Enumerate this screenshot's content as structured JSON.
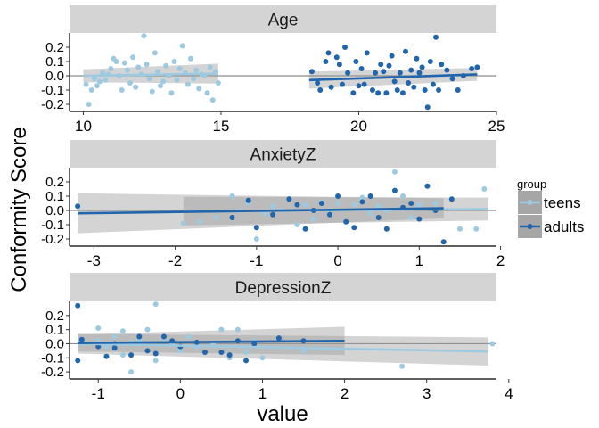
{
  "chart_data": {
    "type": "scatter",
    "ylabel": "Conformity Score",
    "xlabel": "value",
    "legend": {
      "title": "group",
      "placement": "right",
      "entries": [
        {
          "name": "teens",
          "color": "#9ecae1"
        },
        {
          "name": "adults",
          "color": "#2166ac"
        }
      ]
    },
    "ylim": [
      -0.25,
      0.3
    ],
    "yticks": [
      0.2,
      0.1,
      0.0,
      -0.1,
      -0.2
    ],
    "ytick_labels": [
      "0.2",
      "0.1",
      "0.0",
      "-0.1",
      "-0.2"
    ],
    "panels": [
      {
        "strip": "Age",
        "xlim": [
          9.5,
          25.0
        ],
        "xticks": [
          10,
          15,
          20,
          25
        ],
        "xtick_labels": [
          "10",
          "15",
          "20",
          "25"
        ],
        "series": [
          {
            "name": "teens",
            "color": "#9ecae1",
            "fit": {
              "x": [
                10.0,
                14.9
              ],
              "y": [
                0.0,
                0.015
              ],
              "ci_halfwidth": [
                0.045,
                0.07
              ]
            },
            "points": [
              [
                10.1,
                -0.06
              ],
              [
                10.2,
                -0.2
              ],
              [
                10.3,
                -0.1
              ],
              [
                10.4,
                -0.02
              ],
              [
                10.5,
                -0.07
              ],
              [
                10.6,
                -0.04
              ],
              [
                10.7,
                0.02
              ],
              [
                10.8,
                -0.03
              ],
              [
                10.9,
                0.01
              ],
              [
                11.0,
                0.05
              ],
              [
                11.1,
                0.12
              ],
              [
                11.2,
                0.1
              ],
              [
                11.3,
                0.0
              ],
              [
                11.4,
                -0.1
              ],
              [
                11.5,
                0.09
              ],
              [
                11.6,
                0.04
              ],
              [
                11.7,
                -0.05
              ],
              [
                11.8,
                0.13
              ],
              [
                11.9,
                -0.08
              ],
              [
                12.0,
                0.06
              ],
              [
                12.1,
                0.01
              ],
              [
                12.2,
                0.28
              ],
              [
                12.3,
                0.08
              ],
              [
                12.4,
                -0.02
              ],
              [
                12.5,
                -0.11
              ],
              [
                12.6,
                0.16
              ],
              [
                12.7,
                0.03
              ],
              [
                12.8,
                -0.07
              ],
              [
                12.9,
                -0.04
              ],
              [
                13.0,
                0.07
              ],
              [
                13.1,
                0.0
              ],
              [
                13.2,
                -0.12
              ],
              [
                13.3,
                0.1
              ],
              [
                13.4,
                -0.03
              ],
              [
                13.5,
                0.05
              ],
              [
                13.6,
                0.21
              ],
              [
                13.7,
                0.02
              ],
              [
                13.8,
                -0.06
              ],
              [
                13.9,
                0.12
              ],
              [
                14.0,
                -0.02
              ],
              [
                14.1,
                0.04
              ],
              [
                14.2,
                -0.09
              ],
              [
                14.3,
                0.01
              ],
              [
                14.4,
                0.0
              ],
              [
                14.5,
                -0.12
              ],
              [
                14.6,
                0.06
              ],
              [
                14.7,
                -0.17
              ],
              [
                14.8,
                0.03
              ],
              [
                14.9,
                -0.05
              ]
            ]
          },
          {
            "name": "adults",
            "color": "#2166ac",
            "fit": {
              "x": [
                18.2,
                24.3
              ],
              "y": [
                -0.03,
                0.01
              ],
              "ci_halfwidth": [
                0.06,
                0.045
              ]
            },
            "points": [
              [
                18.3,
                0.03
              ],
              [
                18.5,
                -0.05
              ],
              [
                18.6,
                -0.1
              ],
              [
                18.8,
                0.1
              ],
              [
                18.9,
                0.16
              ],
              [
                19.0,
                -0.08
              ],
              [
                19.2,
                0.13
              ],
              [
                19.3,
                0.08
              ],
              [
                19.4,
                -0.06
              ],
              [
                19.5,
                0.2
              ],
              [
                19.6,
                0.02
              ],
              [
                19.8,
                -0.12
              ],
              [
                19.9,
                0.1
              ],
              [
                20.0,
                -0.07
              ],
              [
                20.1,
                0.05
              ],
              [
                20.2,
                -0.06
              ],
              [
                20.3,
                0.16
              ],
              [
                20.5,
                -0.1
              ],
              [
                20.6,
                0.02
              ],
              [
                20.7,
                -0.12
              ],
              [
                20.8,
                0.08
              ],
              [
                20.9,
                0.03
              ],
              [
                21.0,
                -0.12
              ],
              [
                21.1,
                0.07
              ],
              [
                21.2,
                0.14
              ],
              [
                21.3,
                -0.04
              ],
              [
                21.4,
                -0.1
              ],
              [
                21.5,
                0.02
              ],
              [
                21.6,
                -0.12
              ],
              [
                21.7,
                0.17
              ],
              [
                21.8,
                -0.05
              ],
              [
                21.9,
                0.04
              ],
              [
                22.0,
                -0.08
              ],
              [
                22.1,
                0.12
              ],
              [
                22.2,
                0.02
              ],
              [
                22.3,
                0.06
              ],
              [
                22.4,
                -0.1
              ],
              [
                22.5,
                -0.22
              ],
              [
                22.6,
                0.1
              ],
              [
                22.7,
                -0.06
              ],
              [
                22.8,
                0.27
              ],
              [
                22.9,
                -0.1
              ],
              [
                23.0,
                0.08
              ],
              [
                23.2,
                0.04
              ],
              [
                23.4,
                -0.02
              ],
              [
                23.6,
                -0.1
              ],
              [
                23.8,
                0.0
              ],
              [
                24.1,
                0.05
              ],
              [
                24.3,
                0.06
              ]
            ]
          }
        ]
      },
      {
        "strip": "AnxietyZ",
        "xlim": [
          -3.3,
          1.95
        ],
        "xticks": [
          -3,
          -2,
          -1,
          0,
          1,
          2
        ],
        "xtick_labels": [
          "-3",
          "-2",
          "-1",
          "0",
          "1",
          "2"
        ],
        "series": [
          {
            "name": "teens",
            "color": "#9ecae1",
            "fit": {
              "x": [
                -1.9,
                1.85
              ],
              "y": [
                -0.005,
                0.01
              ],
              "ci_halfwidth": [
                0.1,
                0.08
              ]
            },
            "points": [
              [
                -1.9,
                -0.09
              ],
              [
                -1.7,
                -0.08
              ],
              [
                -1.5,
                -0.05
              ],
              [
                -1.3,
                0.1
              ],
              [
                -1.2,
                0.0
              ],
              [
                -1.1,
                0.05
              ],
              [
                -1.0,
                -0.2
              ],
              [
                -0.9,
                -0.02
              ],
              [
                -0.8,
                0.03
              ],
              [
                -0.7,
                0.0
              ],
              [
                -0.6,
                0.08
              ],
              [
                -0.5,
                -0.1
              ],
              [
                -0.4,
                0.04
              ],
              [
                -0.3,
                -0.06
              ],
              [
                -0.2,
                0.06
              ],
              [
                -0.1,
                0.0
              ],
              [
                0.0,
                0.05
              ],
              [
                0.1,
                -0.08
              ],
              [
                0.2,
                0.04
              ],
              [
                0.3,
                0.09
              ],
              [
                0.4,
                -0.02
              ],
              [
                0.5,
                0.03
              ],
              [
                0.6,
                0.0
              ],
              [
                0.7,
                0.27
              ],
              [
                0.8,
                0.1
              ],
              [
                0.9,
                -0.05
              ],
              [
                1.0,
                0.04
              ],
              [
                1.2,
                0.05
              ],
              [
                1.5,
                -0.13
              ],
              [
                1.7,
                -0.13
              ],
              [
                1.8,
                0.15
              ]
            ]
          },
          {
            "name": "adults",
            "color": "#2166ac",
            "fit": {
              "x": [
                -3.2,
                1.3
              ],
              "y": [
                -0.02,
                0.015
              ],
              "ci_halfwidth": [
                0.14,
                0.07
              ]
            },
            "points": [
              [
                -3.2,
                0.03
              ],
              [
                -1.3,
                -0.05
              ],
              [
                -1.1,
                0.07
              ],
              [
                -1.0,
                -0.12
              ],
              [
                -0.8,
                -0.03
              ],
              [
                -0.6,
                0.08
              ],
              [
                -0.5,
                0.04
              ],
              [
                -0.4,
                -0.13
              ],
              [
                -0.3,
                0.0
              ],
              [
                -0.2,
                0.05
              ],
              [
                -0.1,
                -0.03
              ],
              [
                0.0,
                0.1
              ],
              [
                0.1,
                -0.08
              ],
              [
                0.2,
                -0.12
              ],
              [
                0.3,
                0.06
              ],
              [
                0.4,
                0.1
              ],
              [
                0.5,
                -0.05
              ],
              [
                0.6,
                -0.13
              ],
              [
                0.7,
                0.14
              ],
              [
                0.8,
                0.02
              ],
              [
                0.9,
                0.05
              ],
              [
                1.0,
                -0.06
              ],
              [
                1.1,
                0.17
              ],
              [
                1.2,
                0.0
              ],
              [
                1.3,
                -0.22
              ],
              [
                1.4,
                0.08
              ]
            ]
          }
        ]
      },
      {
        "strip": "DepressionZ",
        "xlim": [
          -1.35,
          3.85
        ],
        "xticks": [
          -1,
          0,
          1,
          2,
          3,
          4
        ],
        "xtick_labels": [
          "-1",
          "0",
          "1",
          "2",
          "3",
          "4"
        ],
        "series": [
          {
            "name": "teens",
            "color": "#9ecae1",
            "fit": {
              "x": [
                -1.25,
                3.75
              ],
              "y": [
                0.0,
                -0.055
              ],
              "ci_halfwidth": [
                0.07,
                0.1
              ]
            },
            "points": [
              [
                -1.0,
                0.11
              ],
              [
                -1.0,
                0.02
              ],
              [
                -0.9,
                -0.02
              ],
              [
                -0.8,
                0.05
              ],
              [
                -0.7,
                -0.08
              ],
              [
                -0.7,
                0.09
              ],
              [
                -0.6,
                -0.2
              ],
              [
                -0.6,
                0.01
              ],
              [
                -0.5,
                0.02
              ],
              [
                -0.5,
                0.03
              ],
              [
                -0.4,
                0.1
              ],
              [
                -0.3,
                0.28
              ],
              [
                -0.3,
                -0.12
              ],
              [
                -0.2,
                0.04
              ],
              [
                -0.1,
                0.0
              ],
              [
                0.0,
                -0.05
              ],
              [
                0.1,
                0.05
              ],
              [
                0.2,
                -0.02
              ],
              [
                0.4,
                0.0
              ],
              [
                0.5,
                0.1
              ],
              [
                0.6,
                -0.1
              ],
              [
                0.7,
                0.1
              ],
              [
                0.8,
                -0.06
              ],
              [
                0.9,
                0.02
              ],
              [
                1.0,
                -0.1
              ],
              [
                1.5,
                -0.05
              ],
              [
                2.7,
                -0.16
              ],
              [
                3.8,
                0.0
              ]
            ]
          },
          {
            "name": "adults",
            "color": "#2166ac",
            "fit": {
              "x": [
                -1.25,
                2.0
              ],
              "y": [
                0.005,
                0.02
              ],
              "ci_halfwidth": [
                0.06,
                0.1
              ]
            },
            "points": [
              [
                -1.25,
                0.27
              ],
              [
                -1.25,
                -0.12
              ],
              [
                -1.2,
                0.03
              ],
              [
                -1.0,
                -0.02
              ],
              [
                -0.9,
                -0.09
              ],
              [
                -0.8,
                0.0
              ],
              [
                -0.8,
                -0.03
              ],
              [
                -0.6,
                -0.08
              ],
              [
                -0.5,
                0.05
              ],
              [
                -0.4,
                -0.05
              ],
              [
                -0.3,
                -0.07
              ],
              [
                -0.2,
                0.05
              ],
              [
                -0.1,
                0.02
              ],
              [
                0.0,
                -0.02
              ],
              [
                0.2,
                0.01
              ],
              [
                0.3,
                -0.06
              ],
              [
                0.5,
                -0.06
              ],
              [
                0.6,
                -0.08
              ],
              [
                0.7,
                0.02
              ],
              [
                0.8,
                -0.12
              ],
              [
                0.9,
                0.0
              ],
              [
                1.2,
                0.04
              ],
              [
                1.5,
                0.02
              ]
            ]
          }
        ]
      }
    ]
  }
}
